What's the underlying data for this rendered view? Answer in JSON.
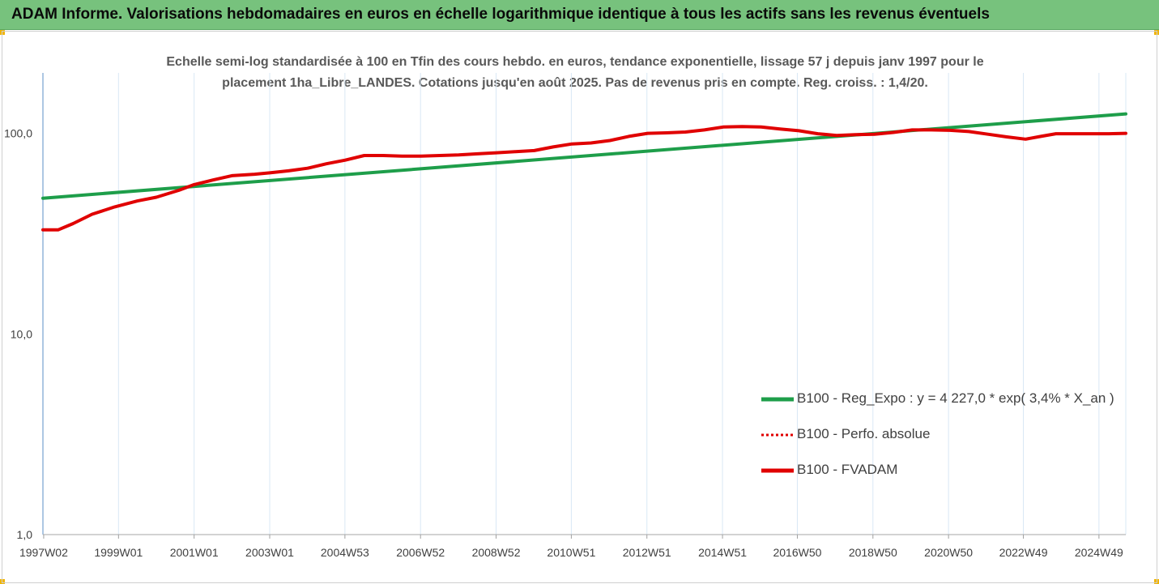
{
  "banner": {
    "title": "ADAM Informe. Valorisations hebdomadaires en euros en échelle logarithmique identique à tous les actifs sans les revenus éventuels"
  },
  "chart_data": {
    "type": "line",
    "title": "Echelle semi-log standardisée à 100 en Tfin des cours hebdo. en euros, tendance exponentielle, lissage 57 j depuis janv 1997 pour le placement 1ha_Libre_LANDES. Cotations jusqu'en août 2025. Pas de revenus pris en compte. Reg. croiss. : 1,4/20.",
    "title_lines": [
      "Echelle semi-log standardisée à 100 en Tfin des cours hebdo. en euros, tendance exponentielle, lissage 57 j depuis janv 1997 pour le",
      "placement 1ha_Libre_LANDES. Cotations jusqu'en août 2025. Pas de revenus pris en compte. Reg. croiss. : 1,4/20."
    ],
    "xlabel": "",
    "ylabel": "",
    "y_scale": "log",
    "ylim": [
      1,
      200
    ],
    "xlim": [
      1997.0,
      2025.65
    ],
    "grid": "vertical",
    "legend_position": "bottom-right",
    "y_ticks": [
      {
        "value": 1,
        "label": "1,0"
      },
      {
        "value": 10,
        "label": "10,0"
      },
      {
        "value": 100,
        "label": "100,0"
      }
    ],
    "x_ticks": [
      {
        "value": 1997.02,
        "label": "1997W02"
      },
      {
        "value": 1999.0,
        "label": "1999W01"
      },
      {
        "value": 2001.0,
        "label": "2001W01"
      },
      {
        "value": 2003.0,
        "label": "2003W01"
      },
      {
        "value": 2004.99,
        "label": "2004W53"
      },
      {
        "value": 2006.99,
        "label": "2006W52"
      },
      {
        "value": 2008.99,
        "label": "2008W52"
      },
      {
        "value": 2010.98,
        "label": "2010W51"
      },
      {
        "value": 2012.98,
        "label": "2012W51"
      },
      {
        "value": 2014.98,
        "label": "2014W51"
      },
      {
        "value": 2016.96,
        "label": "2016W50"
      },
      {
        "value": 2018.96,
        "label": "2018W50"
      },
      {
        "value": 2020.96,
        "label": "2020W50"
      },
      {
        "value": 2022.94,
        "label": "2022W49"
      },
      {
        "value": 2024.94,
        "label": "2024W49"
      }
    ],
    "series": [
      {
        "name": "B100 - Reg_Expo : y = 4 227,0 * exp( 3,4% *  X_an )",
        "color": "#1e9e4a",
        "style": "solid",
        "x": [
          1997.0,
          2025.65
        ],
        "y": [
          47.5,
          125.0
        ]
      },
      {
        "name": "B100 - Perfo. absolue",
        "color": "#e00000",
        "style": "dotted",
        "x": [],
        "y": []
      },
      {
        "name": "B100 - FVADAM",
        "color": "#e00000",
        "style": "solid",
        "x": [
          1997.0,
          1997.4,
          1997.8,
          1998.3,
          1998.9,
          1999.5,
          2000.0,
          2000.6,
          2001.0,
          2001.5,
          2002.0,
          2002.6,
          2003.0,
          2003.5,
          2004.0,
          2004.5,
          2005.0,
          2005.5,
          2006.0,
          2006.5,
          2007.0,
          2007.5,
          2008.0,
          2008.5,
          2009.0,
          2009.5,
          2010.0,
          2010.5,
          2011.0,
          2011.5,
          2012.0,
          2012.5,
          2013.0,
          2013.5,
          2014.0,
          2014.5,
          2015.0,
          2015.5,
          2016.0,
          2016.5,
          2017.0,
          2017.5,
          2018.0,
          2018.5,
          2019.0,
          2019.5,
          2020.0,
          2020.5,
          2021.0,
          2021.5,
          2022.0,
          2022.5,
          2023.0,
          2023.4,
          2023.8,
          2024.3,
          2024.8,
          2025.2,
          2025.65
        ],
        "y": [
          33,
          33,
          35.5,
          39.5,
          43.0,
          46.0,
          48.0,
          52.0,
          55.5,
          58.5,
          61.5,
          62.5,
          63.5,
          65.0,
          67.0,
          70.5,
          73.5,
          77.5,
          77.5,
          77.0,
          77.0,
          77.5,
          78.0,
          79.0,
          80.0,
          81.0,
          82.0,
          85.5,
          88.5,
          89.5,
          92.0,
          96.5,
          100.0,
          100.5,
          101.5,
          104.0,
          107.5,
          108.0,
          107.5,
          105.0,
          103.0,
          99.5,
          97.5,
          98.5,
          99.0,
          101.0,
          104.0,
          104.0,
          103.5,
          102.0,
          99.0,
          96.0,
          93.5,
          96.5,
          99.5,
          99.5,
          99.5,
          99.5,
          100.0
        ]
      }
    ]
  }
}
